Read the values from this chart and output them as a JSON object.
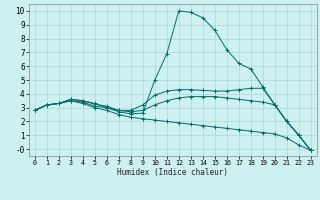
{
  "title": "",
  "xlabel": "Humidex (Indice chaleur)",
  "xlim": [
    -0.5,
    23.5
  ],
  "ylim": [
    -0.5,
    10.5
  ],
  "xticks": [
    0,
    1,
    2,
    3,
    4,
    5,
    6,
    7,
    8,
    9,
    10,
    11,
    12,
    13,
    14,
    15,
    16,
    17,
    18,
    19,
    20,
    21,
    22,
    23
  ],
  "yticks": [
    0,
    1,
    2,
    3,
    4,
    5,
    6,
    7,
    8,
    9,
    10
  ],
  "ytick_labels": [
    "-0",
    "1",
    "2",
    "3",
    "4",
    "5",
    "6",
    "7",
    "8",
    "9",
    "10"
  ],
  "bg_color": "#cff0f0",
  "line_color": "#006b6b",
  "grid_color": "#a8d8d8",
  "lines": [
    {
      "x": [
        0,
        1,
        2,
        3,
        4,
        5,
        6,
        7,
        8,
        9,
        10,
        11,
        12,
        13,
        14,
        15,
        16,
        17,
        18,
        19,
        20,
        21,
        22,
        23
      ],
      "y": [
        2.8,
        3.2,
        3.3,
        3.6,
        3.5,
        3.3,
        3.0,
        2.7,
        2.55,
        2.6,
        5.0,
        6.9,
        10.0,
        9.9,
        9.5,
        8.6,
        7.2,
        6.2,
        5.8,
        4.5,
        3.2,
        2.0,
        1.0,
        -0.1
      ]
    },
    {
      "x": [
        0,
        1,
        2,
        3,
        4,
        5,
        6,
        7,
        8,
        9,
        10,
        11,
        12,
        13,
        14,
        15,
        16,
        17,
        18,
        19,
        20,
        21,
        22,
        23
      ],
      "y": [
        2.8,
        3.2,
        3.3,
        3.6,
        3.5,
        3.25,
        3.1,
        2.8,
        2.8,
        3.2,
        3.9,
        4.2,
        4.3,
        4.3,
        4.25,
        4.2,
        4.2,
        4.3,
        4.4,
        4.4,
        3.2,
        2.0,
        1.0,
        -0.1
      ]
    },
    {
      "x": [
        0,
        1,
        2,
        3,
        4,
        5,
        6,
        7,
        8,
        9,
        10,
        11,
        12,
        13,
        14,
        15,
        16,
        17,
        18,
        19,
        20,
        21,
        22,
        23
      ],
      "y": [
        2.8,
        3.2,
        3.3,
        3.5,
        3.4,
        3.1,
        3.0,
        2.8,
        2.7,
        2.8,
        3.2,
        3.5,
        3.7,
        3.8,
        3.8,
        3.8,
        3.7,
        3.6,
        3.5,
        3.4,
        3.2,
        2.0,
        1.0,
        -0.1
      ]
    },
    {
      "x": [
        0,
        1,
        2,
        3,
        4,
        5,
        6,
        7,
        8,
        9,
        10,
        11,
        12,
        13,
        14,
        15,
        16,
        17,
        18,
        19,
        20,
        21,
        22,
        23
      ],
      "y": [
        2.8,
        3.2,
        3.3,
        3.5,
        3.3,
        3.0,
        2.8,
        2.5,
        2.3,
        2.2,
        2.1,
        2.0,
        1.9,
        1.8,
        1.7,
        1.6,
        1.5,
        1.4,
        1.3,
        1.2,
        1.1,
        0.8,
        0.3,
        -0.1
      ]
    }
  ]
}
